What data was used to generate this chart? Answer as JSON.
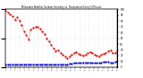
{
  "title": "Milwaukee Weather Outdoor Humidity vs. Temperature Every 5 Minutes",
  "background_color": "#ffffff",
  "grid_color": "#c8c8c8",
  "red_color": "#dd0000",
  "blue_color": "#0000cc",
  "red_y": [
    97,
    95,
    92,
    88,
    82,
    86,
    80,
    72,
    62,
    55,
    48,
    65,
    68,
    70,
    69,
    67,
    62,
    57,
    50,
    44,
    38,
    32,
    28,
    30,
    25,
    22,
    18,
    16,
    19,
    22,
    24,
    26,
    23,
    21,
    20,
    22,
    24,
    26,
    24,
    22,
    20,
    19,
    21,
    23,
    25,
    27,
    29,
    25,
    24,
    28
  ],
  "blue_y": [
    5,
    5,
    5,
    5,
    5,
    5,
    5,
    5,
    5,
    5,
    5,
    5,
    5,
    5,
    5,
    5,
    5,
    5,
    5,
    5,
    5,
    5,
    5,
    5,
    5,
    5,
    5,
    5,
    6,
    6,
    7,
    7,
    7,
    7,
    8,
    8,
    8,
    8,
    7,
    7,
    7,
    7,
    8,
    9,
    9,
    9,
    8,
    8,
    9,
    10
  ],
  "ylim": [
    0,
    100
  ],
  "yticks_right": [
    0,
    10,
    20,
    30,
    40,
    50,
    60,
    70,
    80,
    90,
    100
  ],
  "ytick_labels_right": [
    "0",
    "10",
    "20",
    "30",
    "40",
    "50",
    "60",
    "70",
    "80",
    "90",
    "100"
  ],
  "n_points": 50
}
